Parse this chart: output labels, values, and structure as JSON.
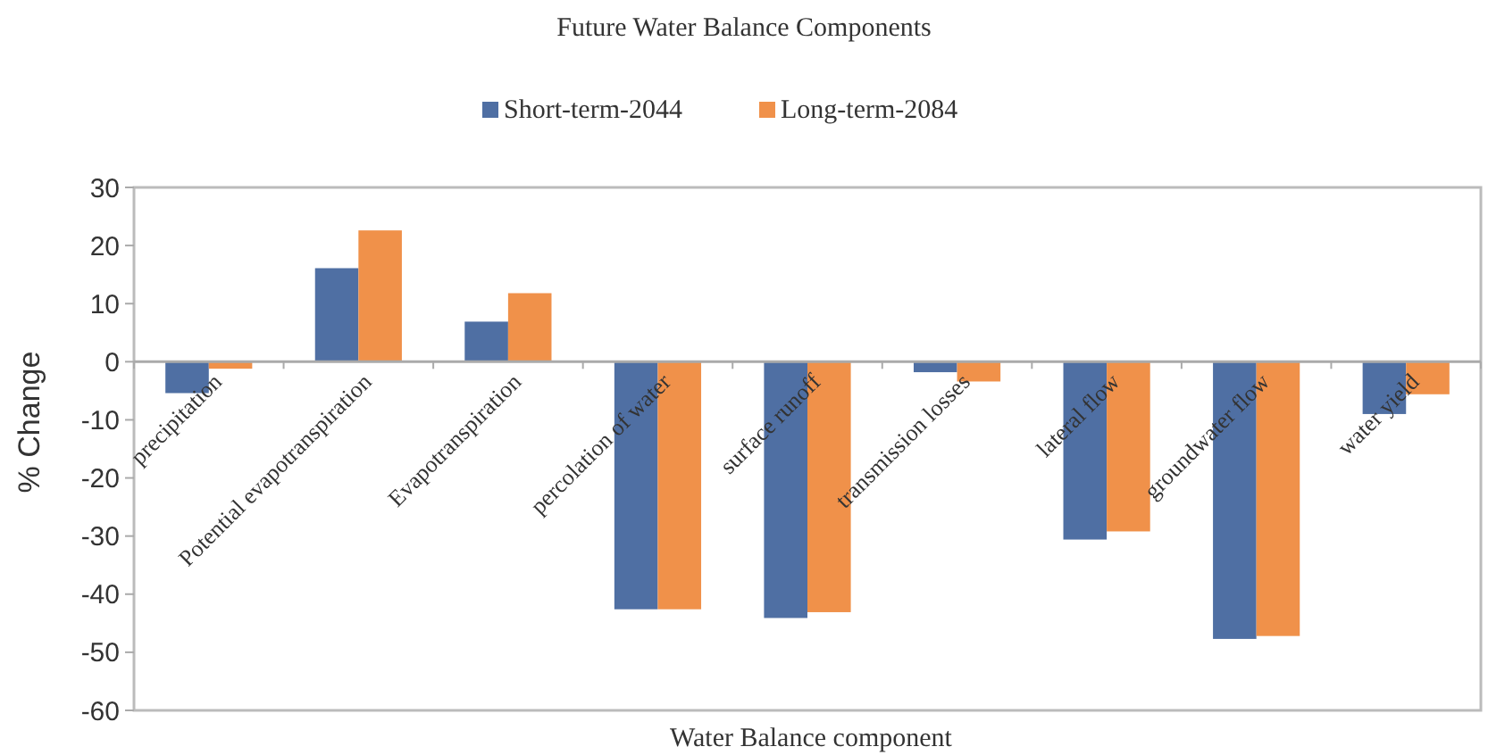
{
  "chart_data": {
    "type": "bar",
    "title": "Future Water Balance Components",
    "xlabel": "Water Balance component",
    "ylabel": "% Change",
    "categories": [
      "precipitation",
      "Potential evapotranspiration",
      "Evapotranspiration",
      "percolation of water",
      "surface runoff",
      "transmission losses",
      "lateral flow",
      "groundwater flow",
      "water yield"
    ],
    "series": [
      {
        "name": "Short-term-2044",
        "color": "#4f6fa3",
        "values": [
          -5.4,
          16.1,
          6.9,
          -42.6,
          -44.1,
          -1.8,
          -30.6,
          -47.7,
          -9.0
        ]
      },
      {
        "name": "Long-term-2084",
        "color": "#f0914a",
        "values": [
          -1.2,
          22.6,
          11.8,
          -42.6,
          -43.1,
          -3.4,
          -29.2,
          -47.2,
          -5.6
        ]
      }
    ],
    "ylim": [
      -60,
      30
    ],
    "yticks": [
      -60,
      -50,
      -40,
      -30,
      -20,
      -10,
      0,
      10,
      20,
      30
    ],
    "grid": false,
    "legend": "top"
  }
}
